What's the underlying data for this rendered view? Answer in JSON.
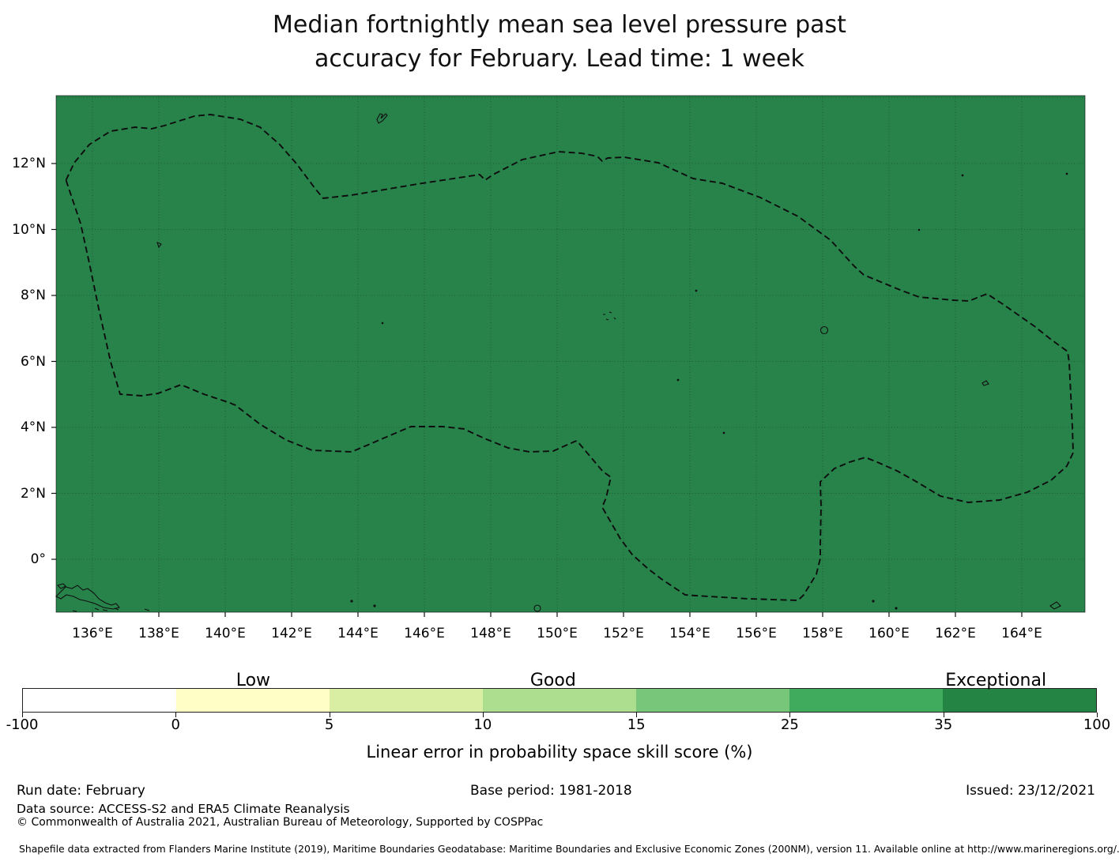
{
  "title_lines": [
    "Median fortnightly mean sea level pressure past",
    "accuracy for February. Lead time: 1 week"
  ],
  "chart_data": {
    "type": "heatmap",
    "subtype": "geographic-skill-map",
    "description": "Filled map of the western tropical Pacific; the entire shown EEZ region is shaded in the darkest green bin with a dashed maritime-boundary (EEZ) outline overlaid on a lat/lon grid.",
    "x_axis": {
      "tick_labels": [
        "136°E",
        "138°E",
        "140°E",
        "142°E",
        "144°E",
        "146°E",
        "148°E",
        "150°E",
        "152°E",
        "154°E",
        "156°E",
        "158°E",
        "160°E",
        "162°E",
        "164°E"
      ],
      "range_deg_east": [
        134.9,
        166.0
      ]
    },
    "y_axis": {
      "tick_labels": [
        "12°N",
        "10°N",
        "8°N",
        "6°N",
        "4°N",
        "2°N",
        "0°"
      ],
      "range_deg_north": [
        -1.6,
        14.1
      ]
    },
    "grid": "dotted graticule every 2 degrees",
    "map_fill_color": "#28834b",
    "map_fill_bin": "35–100",
    "boundary_line": "black dashed EEZ outline",
    "colorbar": {
      "label": "Linear error in probability space skill score (%)",
      "bin_edges": [
        -100,
        0,
        5,
        10,
        15,
        25,
        35,
        100
      ],
      "tick_labels": [
        "-100",
        "0",
        "5",
        "10",
        "15",
        "25",
        "35",
        "100"
      ],
      "segment_colors": [
        "#ffffff",
        "#fffec6",
        "#d9eda3",
        "#addd8e",
        "#78c679",
        "#41ab5d",
        "#238443"
      ],
      "category_labels": [
        {
          "text": "Low",
          "pos_pct": 21.5
        },
        {
          "text": "Good",
          "pos_pct": 49.4
        },
        {
          "text": "Exceptional",
          "pos_pct": 90.6
        }
      ]
    }
  },
  "footer": {
    "run_date": "Run date: February",
    "base_period": "Base period: 1981-2018",
    "issued": "Issued: 23/12/2021",
    "data_source": "Data source: ACCESS-S2 and ERA5 Climate Reanalysis",
    "copyright": "© Commonwealth of Australia 2021, Australian Bureau of Meteorology, Supported by COSPPac",
    "shapefile_note": "Shapefile data extracted from Flanders Marine Institute (2019), Maritime Boundaries Geodatabase: Maritime Boundaries and Exclusive Economic Zones (200NM), version 11. Available online at http://www.marineregions.org/."
  }
}
